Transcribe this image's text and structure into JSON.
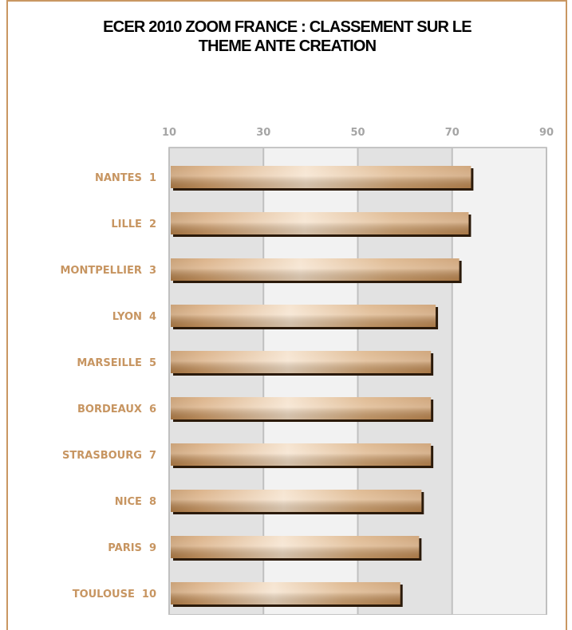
{
  "colors": {
    "frame": "#c99762",
    "bar": "#c18a52",
    "bar_highlight": "#f2dcc3",
    "category_label": "#c79561",
    "tick_label": "#a5a5a5",
    "plot_band_light": "#f2f2f2",
    "plot_band_dark": "#e2e2e2",
    "gridline": "#c0c0c0"
  },
  "chart_data": {
    "type": "bar",
    "orientation": "horizontal",
    "title_lines": [
      "ECER 2010 ZOOM FRANCE : CLASSEMENT SUR LE",
      "THEME ANTE CREATION"
    ],
    "title": "ECER 2010 ZOOM FRANCE : CLASSEMENT SUR LE THEME ANTE CREATION",
    "xlabel": "",
    "ylabel": "",
    "xlim": [
      10,
      90
    ],
    "x_ticks": [
      10,
      30,
      50,
      70,
      90
    ],
    "x_axis_position": "top",
    "grid": true,
    "legend": "none",
    "categories": [
      "NANTES  1",
      "LILLE  2",
      "MONTPELLIER  3",
      "LYON  4",
      "MARSEILLE  5",
      "BORDEAUX  6",
      "STRASBOURG  7",
      "NICE  8",
      "PARIS  9",
      "TOULOUSE  10"
    ],
    "values": [
      74,
      73.5,
      71.5,
      66.5,
      65.5,
      65.5,
      65.5,
      63.5,
      63,
      59
    ]
  }
}
